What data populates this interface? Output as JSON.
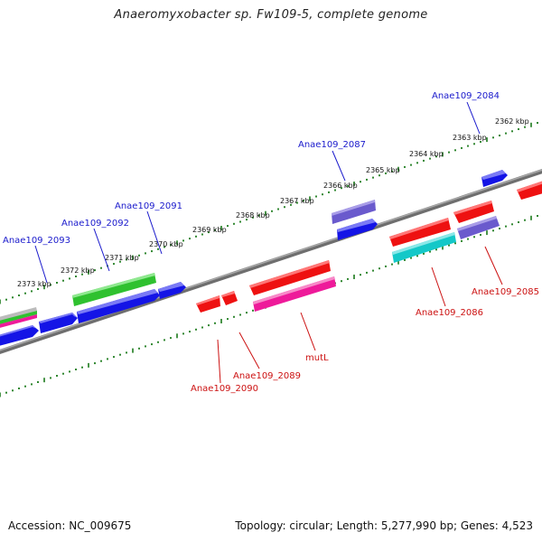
{
  "title": "Anaeromyxobacter sp. Fw109-5, complete genome",
  "footer": {
    "accession": "Accession: NC_009675",
    "topology": "Topology: circular; Length: 5,277,990 bp; Genes: 4,523"
  },
  "scale": {
    "labels": [
      "2362 kbp",
      "2363 kbp",
      "2364 kbp",
      "2365 kbp",
      "2366 kbp",
      "2367 kbp",
      "2368 kbp",
      "2369 kbp",
      "2370 kbp",
      "2371 kbp",
      "2372 kbp",
      "2373 kbp"
    ]
  },
  "genes": {
    "forward": [
      "Anae109_2084",
      "Anae109_2087",
      "Anae109_2091",
      "Anae109_2092",
      "Anae109_2093"
    ],
    "reverse": [
      "Anae109_2085",
      "Anae109_2086",
      "mutL",
      "Anae109_2089",
      "Anae109_2090"
    ]
  },
  "colors": {
    "backbone": "#8a8a8a",
    "tick": "#1a7a1a",
    "forward_label": "#1a1acc",
    "reverse_label": "#cc1111",
    "blue": "#1414e6",
    "green": "#2fc12f",
    "purple": "#6a5acd",
    "red": "#ee1111",
    "pink": "#ee1a9a",
    "cyan": "#14c8c8"
  }
}
